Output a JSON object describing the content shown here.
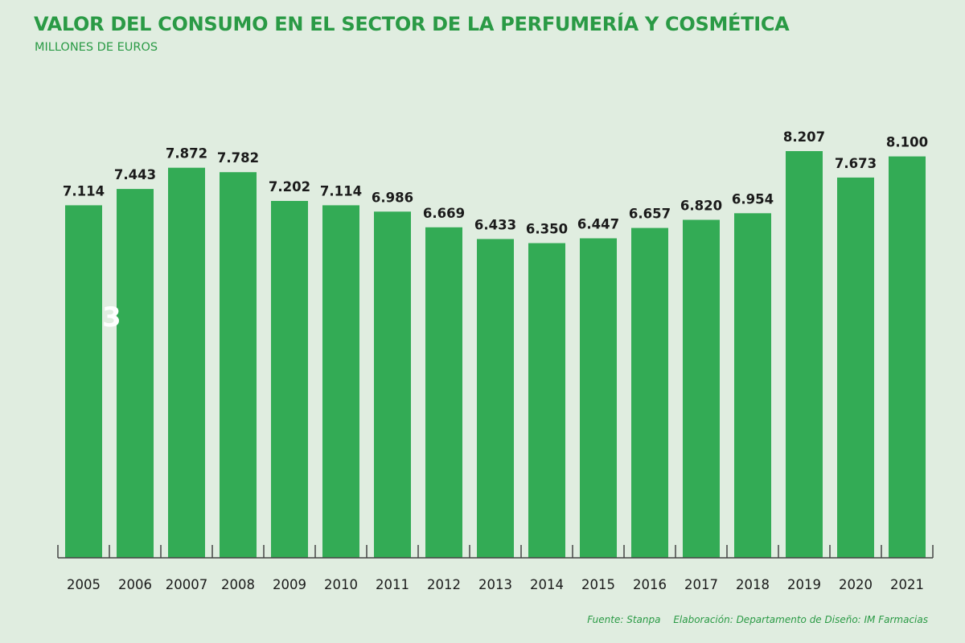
{
  "chart_data": {
    "type": "bar",
    "title": "VALOR DEL CONSUMO EN EL SECTOR DE LA PERFUMERÍA Y COSMÉTICA",
    "subtitle": "MILLONES DE EUROS",
    "categories": [
      "2005",
      "2006",
      "20007",
      "2008",
      "2009",
      "2010",
      "2011",
      "2012",
      "2013",
      "2014",
      "2015",
      "2016",
      "2017",
      "2018",
      "2019",
      "2020",
      "2021"
    ],
    "values": [
      7114,
      7443,
      7872,
      7782,
      7202,
      7114,
      6986,
      6669,
      6433,
      6350,
      6447,
      6657,
      6820,
      6954,
      8207,
      7673,
      8100
    ],
    "value_labels": [
      "7.114",
      "7.443",
      "7.872",
      "7.782",
      "7.202",
      "7.114",
      "6.986",
      "6.669",
      "6.433",
      "6.350",
      "6.447",
      "6.657",
      "6.820",
      "6.954",
      "8.207",
      "7.673",
      "8.100"
    ],
    "ylim": [
      0,
      8207
    ],
    "grid": false,
    "legend": "none",
    "bar_color": "#33ab55",
    "stray_mark": "3"
  },
  "source": {
    "fuente": "Fuente: Stanpa",
    "elaboracion": "Elaboración: Departamento de Diseño: IM Farmacias"
  },
  "colors": {
    "background": "#e0ede0",
    "title": "#2a9a45",
    "bar": "#33ab55",
    "text": "#1a1a1a",
    "axis": "#444444"
  }
}
